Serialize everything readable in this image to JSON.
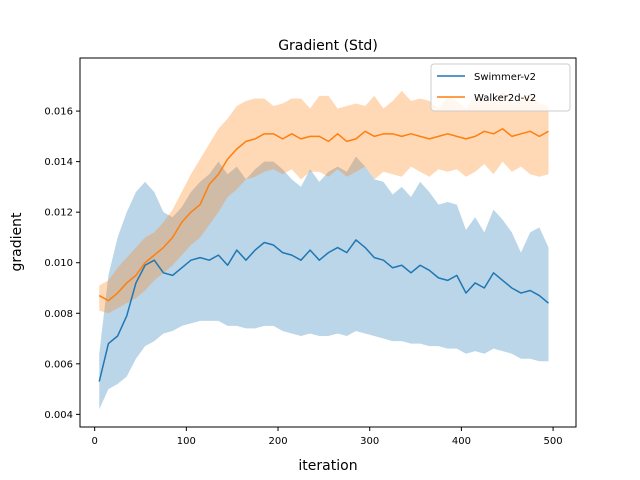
{
  "chart_data": {
    "type": "line",
    "title": "Gradient (Std)",
    "xlabel": "iteration",
    "ylabel": "gradient",
    "xlim": [
      -16,
      525
    ],
    "ylim": [
      0.0035,
      0.0181
    ],
    "xticks": [
      0,
      100,
      200,
      300,
      400,
      500
    ],
    "yticks": [
      0.004,
      0.006,
      0.008,
      0.01,
      0.012,
      0.014,
      0.016
    ],
    "ytick_labels": [
      "0.004",
      "0.006",
      "0.008",
      "0.010",
      "0.012",
      "0.014",
      "0.016"
    ],
    "grid": false,
    "legend_position": "top-right",
    "x": [
      5,
      15,
      25,
      35,
      45,
      55,
      65,
      75,
      85,
      95,
      105,
      115,
      125,
      135,
      145,
      155,
      165,
      175,
      185,
      195,
      205,
      215,
      225,
      235,
      245,
      255,
      265,
      275,
      285,
      295,
      305,
      315,
      325,
      335,
      345,
      355,
      365,
      375,
      385,
      395,
      405,
      415,
      425,
      435,
      445,
      455,
      465,
      475,
      485,
      495
    ],
    "series": [
      {
        "name": "Swimmer-v2",
        "color": "#1f77b4",
        "values": [
          0.0053,
          0.0068,
          0.0071,
          0.0079,
          0.0092,
          0.0099,
          0.0101,
          0.0096,
          0.0095,
          0.0098,
          0.0101,
          0.0102,
          0.0101,
          0.0103,
          0.0099,
          0.0105,
          0.0101,
          0.0105,
          0.0108,
          0.0107,
          0.0104,
          0.0103,
          0.0101,
          0.0105,
          0.0101,
          0.0104,
          0.0106,
          0.0104,
          0.0109,
          0.0106,
          0.0102,
          0.0101,
          0.0098,
          0.0099,
          0.0096,
          0.0099,
          0.0097,
          0.0094,
          0.0093,
          0.0095,
          0.0088,
          0.0092,
          0.009,
          0.0096,
          0.0093,
          0.009,
          0.0088,
          0.0089,
          0.0087,
          0.0084
        ],
        "upper": [
          0.0064,
          0.0095,
          0.011,
          0.012,
          0.0128,
          0.0132,
          0.0128,
          0.012,
          0.0118,
          0.0122,
          0.0128,
          0.0132,
          0.0135,
          0.014,
          0.0135,
          0.0138,
          0.0133,
          0.0137,
          0.014,
          0.014,
          0.0137,
          0.0133,
          0.013,
          0.0137,
          0.0132,
          0.0136,
          0.0138,
          0.0136,
          0.0142,
          0.0138,
          0.0133,
          0.0132,
          0.0127,
          0.013,
          0.0126,
          0.0132,
          0.0128,
          0.0123,
          0.0124,
          0.0123,
          0.0113,
          0.0118,
          0.0112,
          0.0121,
          0.0117,
          0.0112,
          0.0104,
          0.0112,
          0.0114,
          0.0106
        ],
        "lower": [
          0.0042,
          0.005,
          0.0052,
          0.0055,
          0.0062,
          0.0067,
          0.0069,
          0.0072,
          0.0073,
          0.0075,
          0.0076,
          0.0077,
          0.0077,
          0.0077,
          0.0075,
          0.0075,
          0.0074,
          0.0074,
          0.0075,
          0.0075,
          0.0073,
          0.0072,
          0.0071,
          0.0072,
          0.0071,
          0.0071,
          0.0072,
          0.0071,
          0.0073,
          0.0072,
          0.0071,
          0.007,
          0.0069,
          0.0069,
          0.0068,
          0.0068,
          0.0067,
          0.0067,
          0.0066,
          0.0066,
          0.0064,
          0.0065,
          0.0064,
          0.0066,
          0.0065,
          0.0064,
          0.0062,
          0.0062,
          0.0061,
          0.0061
        ]
      },
      {
        "name": "Walker2d-v2",
        "color": "#ff7f0e",
        "values": [
          0.0087,
          0.0085,
          0.0088,
          0.0092,
          0.0095,
          0.01,
          0.0103,
          0.0106,
          0.011,
          0.0116,
          0.012,
          0.0123,
          0.0131,
          0.0135,
          0.0141,
          0.0145,
          0.0148,
          0.0149,
          0.0151,
          0.0151,
          0.0149,
          0.0151,
          0.0149,
          0.015,
          0.015,
          0.0148,
          0.0151,
          0.0148,
          0.0149,
          0.0152,
          0.015,
          0.0151,
          0.0151,
          0.015,
          0.0151,
          0.015,
          0.0149,
          0.015,
          0.0151,
          0.015,
          0.0149,
          0.015,
          0.0152,
          0.0151,
          0.0153,
          0.015,
          0.0151,
          0.0152,
          0.015,
          0.0152
        ],
        "upper": [
          0.0091,
          0.0093,
          0.0098,
          0.0102,
          0.0106,
          0.011,
          0.0112,
          0.0116,
          0.0121,
          0.0128,
          0.0135,
          0.0141,
          0.0147,
          0.0153,
          0.0157,
          0.0162,
          0.0164,
          0.0165,
          0.0165,
          0.0162,
          0.0163,
          0.0165,
          0.0165,
          0.0161,
          0.0166,
          0.0166,
          0.0161,
          0.0162,
          0.0163,
          0.0162,
          0.0166,
          0.0161,
          0.0164,
          0.0168,
          0.0164,
          0.0165,
          0.0164,
          0.0161,
          0.0166,
          0.0164,
          0.0161,
          0.0166,
          0.0164,
          0.0164,
          0.0168,
          0.0163,
          0.0165,
          0.0167,
          0.0163,
          0.0162
        ],
        "lower": [
          0.0081,
          0.008,
          0.0082,
          0.0084,
          0.0086,
          0.0089,
          0.0093,
          0.0096,
          0.0099,
          0.0103,
          0.0107,
          0.011,
          0.0115,
          0.012,
          0.0126,
          0.0129,
          0.0133,
          0.0134,
          0.0136,
          0.0137,
          0.0135,
          0.0137,
          0.0133,
          0.0136,
          0.0136,
          0.0134,
          0.0137,
          0.0134,
          0.0136,
          0.0138,
          0.0133,
          0.0136,
          0.0135,
          0.0134,
          0.0138,
          0.0136,
          0.0134,
          0.0137,
          0.0136,
          0.0137,
          0.0134,
          0.0136,
          0.0139,
          0.0135,
          0.014,
          0.0136,
          0.0138,
          0.0135,
          0.0134,
          0.0135
        ]
      }
    ]
  }
}
